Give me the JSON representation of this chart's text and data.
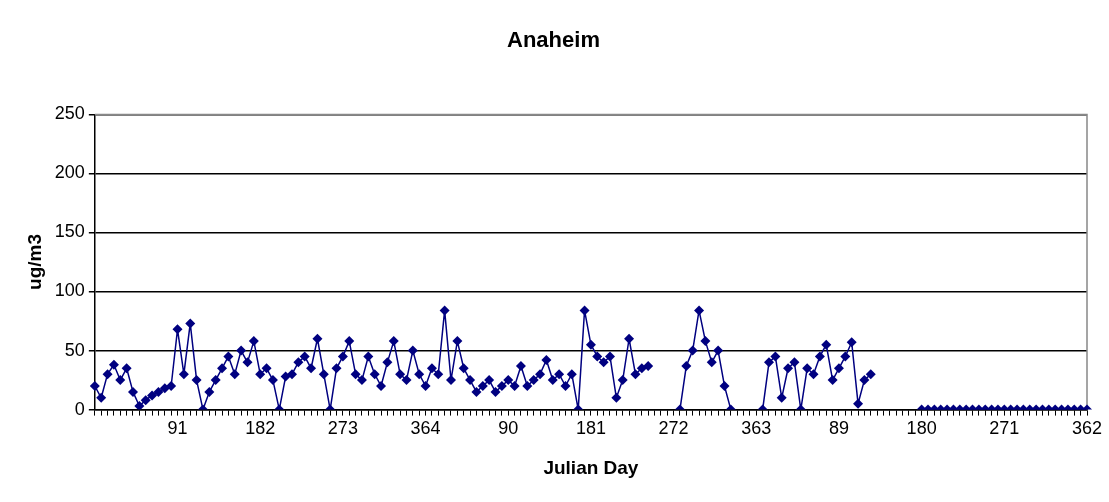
{
  "chart_data": {
    "type": "line",
    "title": "Anaheim",
    "xlabel": "Julian Day",
    "ylabel": "ug/m3",
    "categories": [
      null,
      null,
      null,
      null,
      null,
      null,
      null,
      null,
      null,
      null,
      null,
      null,
      null,
      "91",
      null,
      null,
      null,
      null,
      null,
      null,
      null,
      null,
      null,
      null,
      null,
      null,
      "182",
      null,
      null,
      null,
      null,
      null,
      null,
      null,
      null,
      null,
      null,
      null,
      null,
      "273",
      null,
      null,
      null,
      null,
      null,
      null,
      null,
      null,
      null,
      null,
      null,
      null,
      "364",
      null,
      null,
      null,
      null,
      null,
      null,
      null,
      null,
      null,
      null,
      null,
      null,
      "90",
      null,
      null,
      null,
      null,
      null,
      null,
      null,
      null,
      null,
      null,
      null,
      null,
      "181",
      null,
      null,
      null,
      null,
      null,
      null,
      null,
      null,
      null,
      null,
      null,
      null,
      "272",
      null,
      null,
      null,
      null,
      null,
      null,
      null,
      null,
      null,
      null,
      null,
      null,
      "363",
      null,
      null,
      null,
      null,
      null,
      null,
      null,
      null,
      null,
      null,
      null,
      null,
      "89",
      null,
      null,
      null,
      null,
      null,
      null,
      null,
      null,
      null,
      null,
      null,
      null,
      "180",
      null,
      null,
      null,
      null,
      null,
      null,
      null,
      null,
      null,
      null,
      null,
      null,
      "271",
      null,
      null,
      null,
      null,
      null,
      null,
      null,
      null,
      null,
      null,
      null,
      null,
      "362"
    ],
    "series": [
      {
        "color": "#000080",
        "values": [
          20,
          10,
          30,
          38,
          25,
          35,
          15,
          3,
          8,
          12,
          15,
          18,
          20,
          68,
          30,
          73,
          25,
          0,
          15,
          25,
          35,
          45,
          30,
          50,
          40,
          58,
          30,
          35,
          25,
          0,
          28,
          30,
          40,
          45,
          35,
          60,
          30,
          0,
          35,
          45,
          58,
          30,
          25,
          45,
          30,
          20,
          40,
          58,
          30,
          25,
          50,
          30,
          20,
          35,
          30,
          84,
          25,
          58,
          35,
          25,
          15,
          20,
          25,
          15,
          20,
          25,
          20,
          37,
          20,
          25,
          30,
          42,
          25,
          30,
          20,
          30,
          0,
          84,
          55,
          45,
          40,
          45,
          10,
          25,
          60,
          30,
          35,
          37,
          null,
          null,
          null,
          null,
          0,
          37,
          50,
          84,
          58,
          40,
          50,
          20,
          0,
          null,
          null,
          null,
          null,
          0,
          40,
          45,
          10,
          35,
          40,
          0,
          35,
          30,
          45,
          55,
          25,
          35,
          45,
          57,
          5,
          25,
          30,
          null,
          null,
          null,
          null,
          null,
          null,
          null,
          0,
          0,
          0,
          0,
          0,
          0,
          0,
          0,
          0,
          0,
          0,
          0,
          0,
          0,
          0,
          0,
          0,
          0,
          0,
          0,
          0,
          0,
          0,
          0,
          0,
          0,
          0
        ]
      }
    ],
    "ylim": [
      0,
      250
    ],
    "yticks": [
      0,
      50,
      100,
      150,
      200,
      250
    ],
    "grid": "y",
    "marker": "diamond"
  }
}
